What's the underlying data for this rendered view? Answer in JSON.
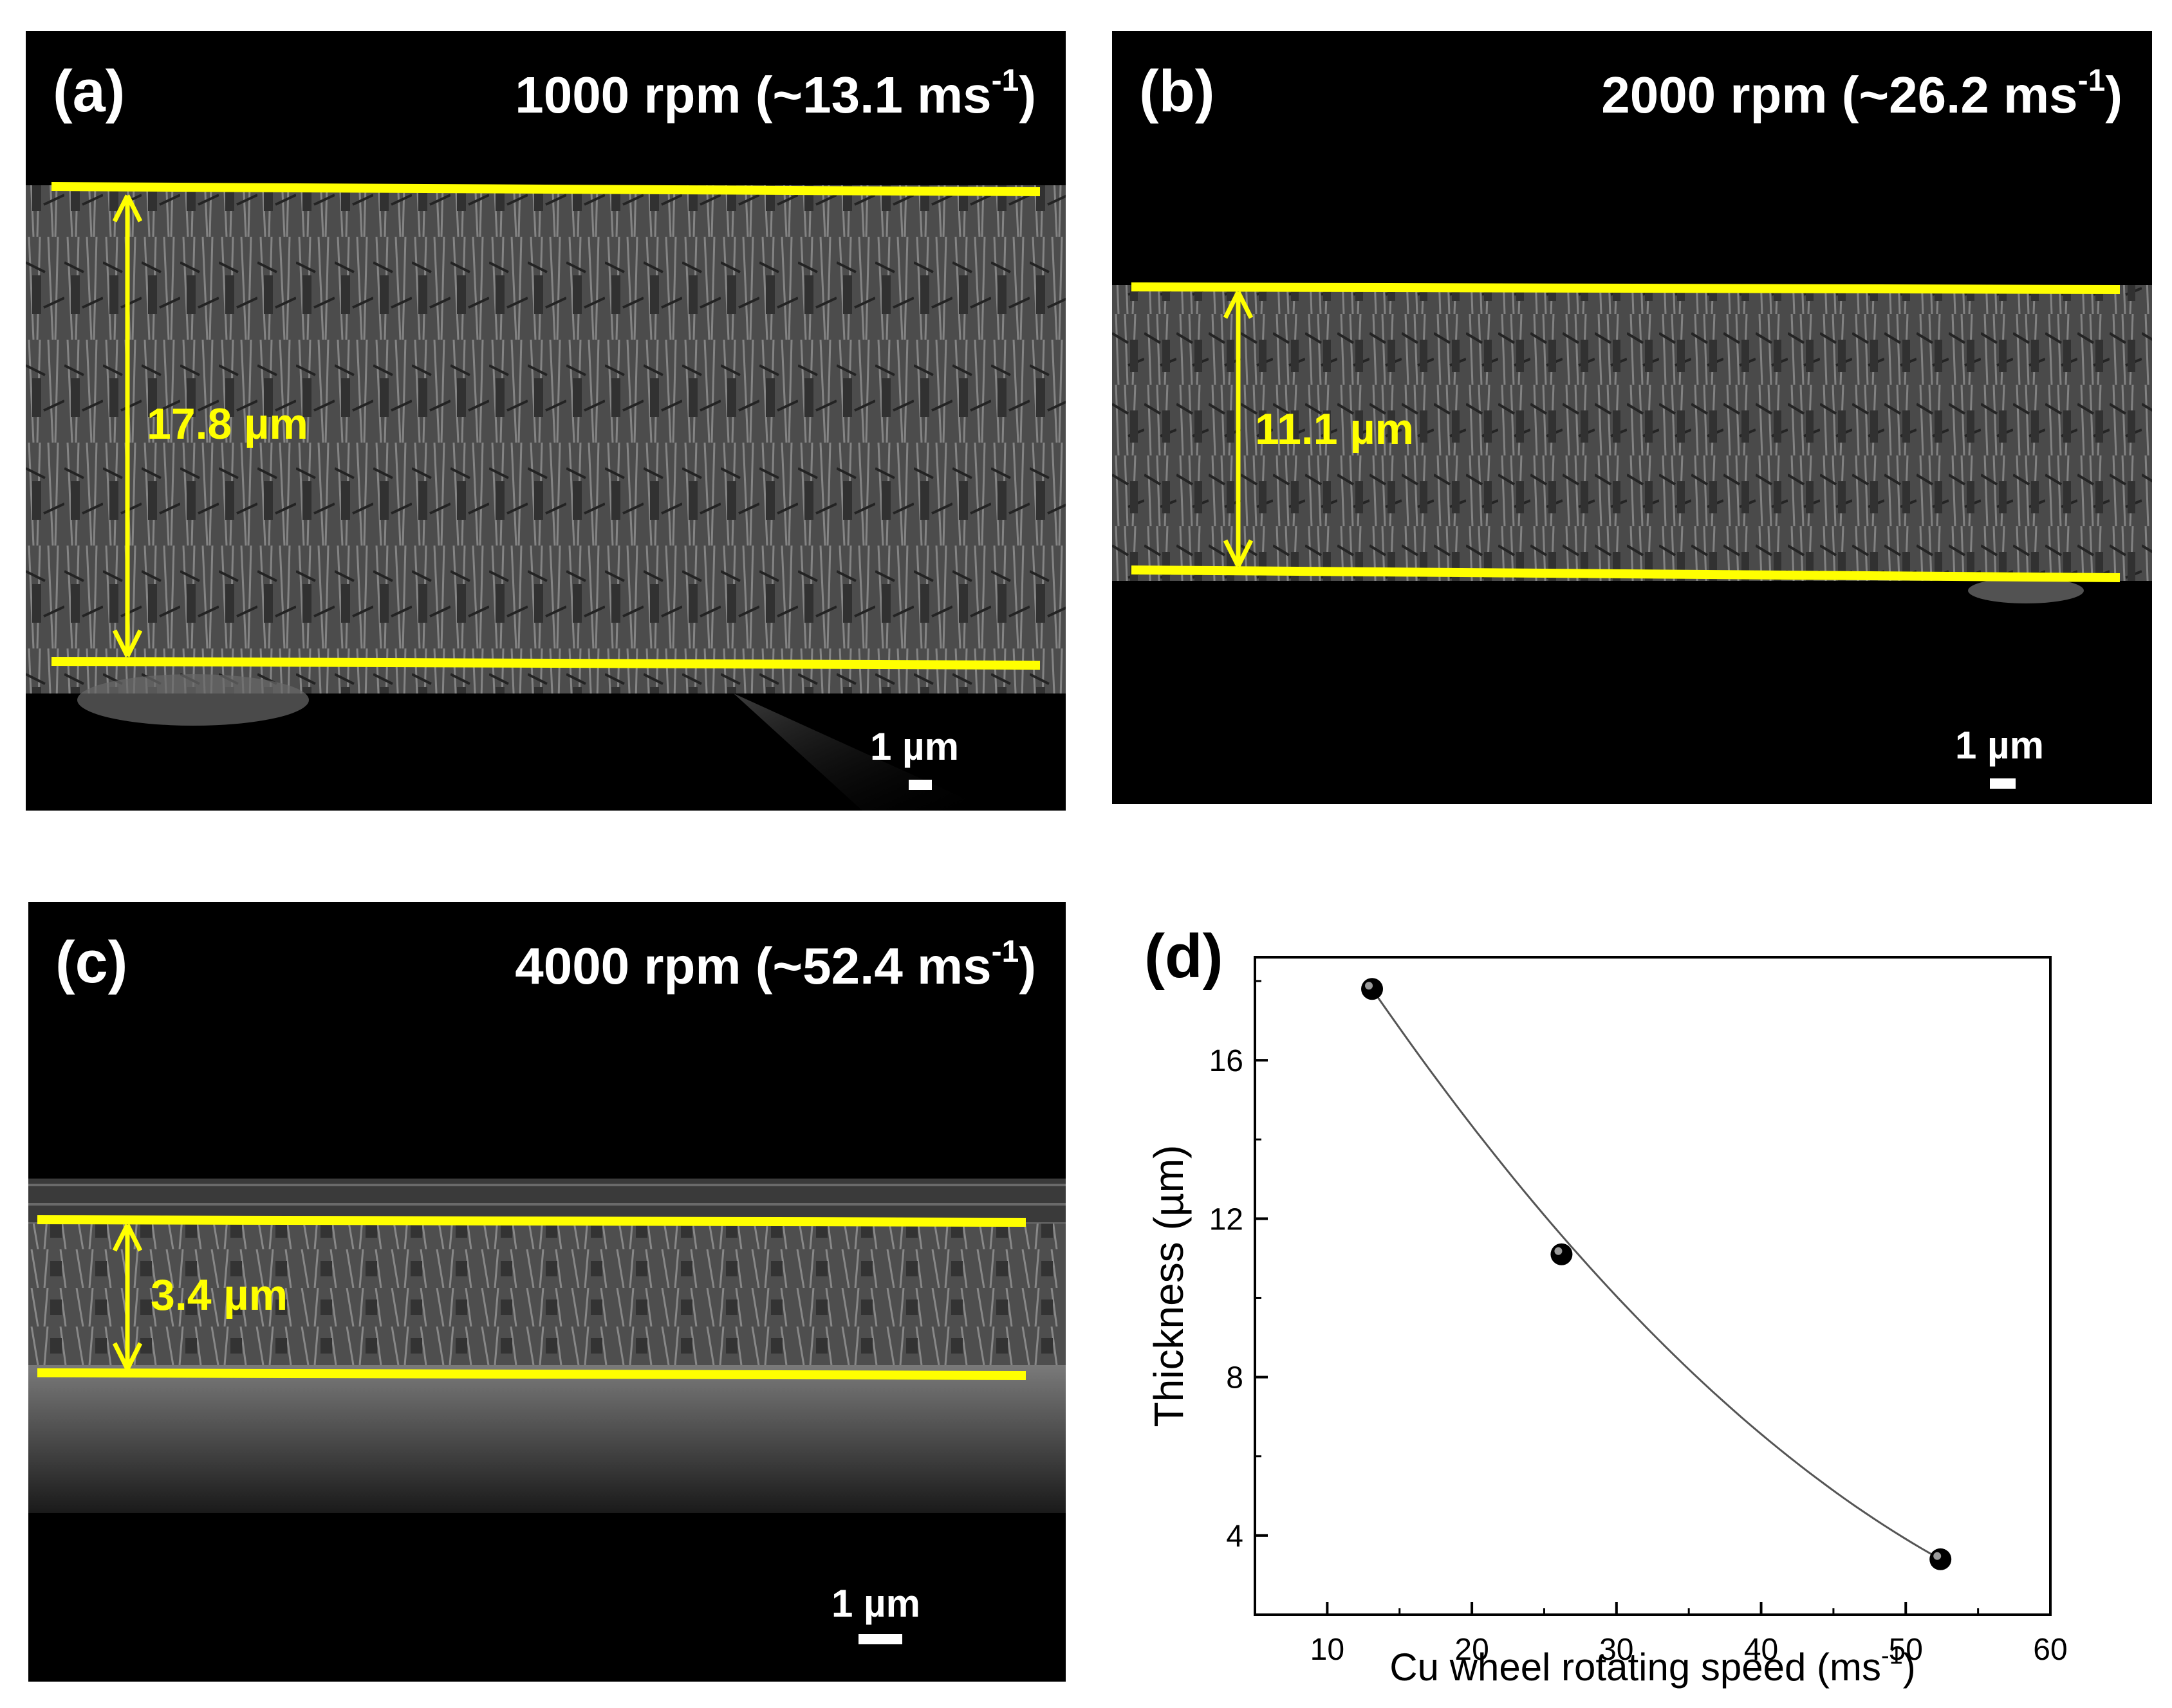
{
  "panels": {
    "a": {
      "tag": "(a)",
      "rpm": "1000 rpm (~13.1 ms",
      "rpm_sup": "-1",
      "rpm_close": ")",
      "thickness": "17.8 µm",
      "scale": "1 µm"
    },
    "b": {
      "tag": "(b)",
      "rpm": "2000 rpm (~26.2 ms",
      "rpm_sup": "-1",
      "rpm_close": ")",
      "thickness": "11.1 µm",
      "scale": "1 µm"
    },
    "c": {
      "tag": "(c)",
      "rpm": "4000 rpm (~52.4 ms",
      "rpm_sup": "-1",
      "rpm_close": ")",
      "thickness": "3.4 µm",
      "scale": "1 µm"
    },
    "d": {
      "tag": "(d)"
    }
  },
  "colors": {
    "annotation": "#ffff00",
    "sem_background": "#000000",
    "marker": "#000000"
  },
  "chart_data": {
    "type": "scatter",
    "xlabel": "Cu wheel rotating speed (ms",
    "xlabel_sup": "-1",
    "xlabel_close": ")",
    "ylabel": "Thickness (µm)",
    "xlim": [
      5,
      60
    ],
    "ylim": [
      2,
      18.6
    ],
    "xticks": [
      10,
      20,
      30,
      40,
      50,
      60
    ],
    "yticks": [
      4,
      8,
      12,
      16
    ],
    "grid": false,
    "series": [
      {
        "x": [
          13.1,
          26.2,
          52.4
        ],
        "y": [
          17.8,
          11.1,
          3.4
        ]
      }
    ],
    "fit_curve": true
  }
}
